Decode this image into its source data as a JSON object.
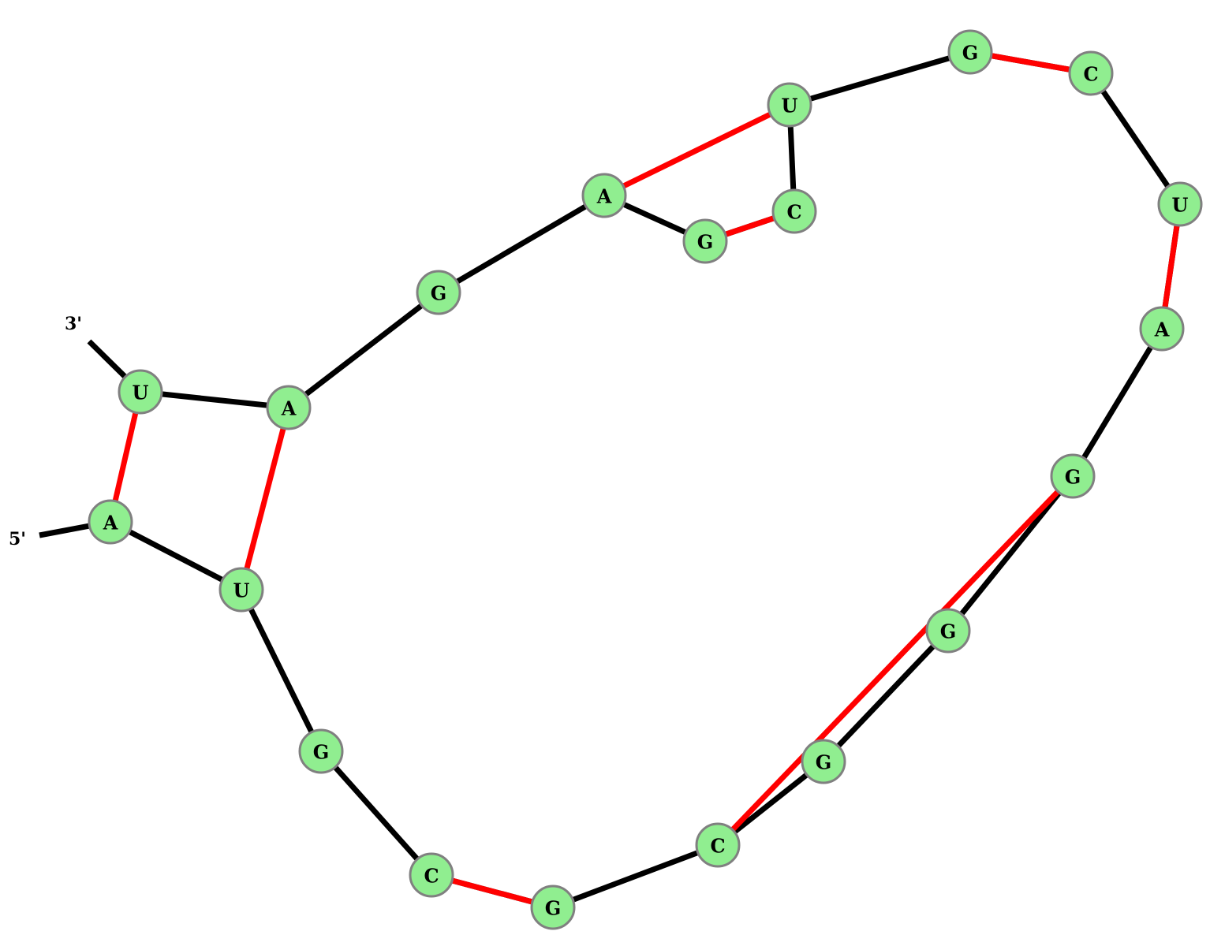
{
  "strand_labels": {
    "five_prime": "5'",
    "three_prime": "3'"
  },
  "colors": {
    "node_fill": "#90ee90",
    "node_stroke": "#808080",
    "backbone": "#000000",
    "base_pair": "#ff0000"
  },
  "nucleotides": [
    {
      "id": 0,
      "base": "A"
    },
    {
      "id": 1,
      "base": "U"
    },
    {
      "id": 2,
      "base": "G"
    },
    {
      "id": 3,
      "base": "C"
    },
    {
      "id": 4,
      "base": "G"
    },
    {
      "id": 5,
      "base": "C"
    },
    {
      "id": 6,
      "base": "G"
    },
    {
      "id": 7,
      "base": "G"
    },
    {
      "id": 8,
      "base": "G"
    },
    {
      "id": 9,
      "base": "A"
    },
    {
      "id": 10,
      "base": "U"
    },
    {
      "id": 11,
      "base": "C"
    },
    {
      "id": 12,
      "base": "G"
    },
    {
      "id": 13,
      "base": "U"
    },
    {
      "id": 14,
      "base": "C"
    },
    {
      "id": 15,
      "base": "G"
    },
    {
      "id": 16,
      "base": "A"
    },
    {
      "id": 17,
      "base": "G"
    },
    {
      "id": 18,
      "base": "A"
    },
    {
      "id": 19,
      "base": "U"
    }
  ],
  "base_pairs": [
    [
      0,
      19
    ],
    [
      1,
      18
    ],
    [
      3,
      4
    ],
    [
      5,
      8
    ],
    [
      9,
      10
    ],
    [
      11,
      12
    ],
    [
      13,
      16
    ],
    [
      14,
      15
    ]
  ]
}
